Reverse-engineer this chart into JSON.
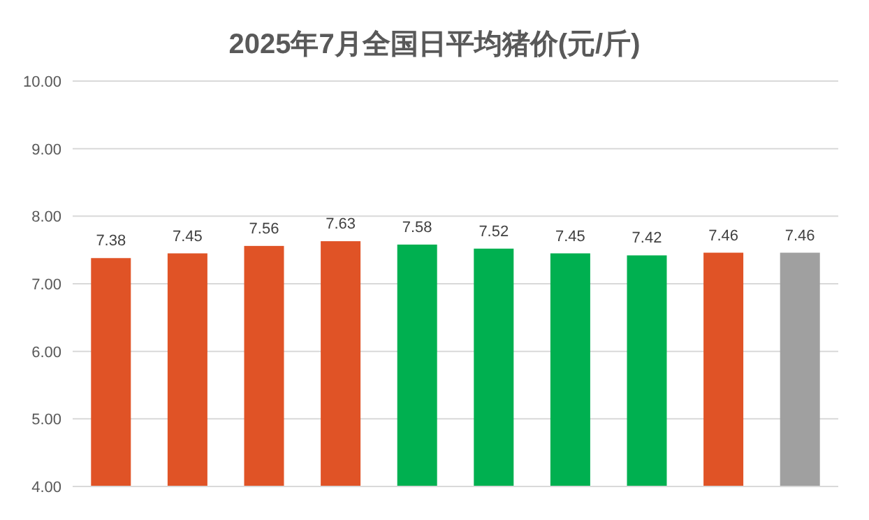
{
  "chart_data": {
    "type": "bar",
    "title": "2025年7月全国日平均猪价(元/斤)",
    "categories": [
      null,
      null,
      null,
      null,
      null,
      null,
      null,
      null,
      null,
      null
    ],
    "values": [
      7.38,
      7.45,
      7.56,
      7.63,
      7.58,
      7.52,
      7.45,
      7.42,
      7.46,
      7.46
    ],
    "colors": [
      "#e05326",
      "#e05326",
      "#e05326",
      "#e05326",
      "#00b050",
      "#00b050",
      "#00b050",
      "#00b050",
      "#e05326",
      "#a0a0a0"
    ],
    "ylim": [
      4,
      10
    ],
    "yticks": [
      {
        "value": 4,
        "label": "4.00"
      },
      {
        "value": 5,
        "label": "5.00"
      },
      {
        "value": 6,
        "label": "6.00"
      },
      {
        "value": 7,
        "label": "7.00"
      },
      {
        "value": 8,
        "label": "8.00"
      },
      {
        "value": 9,
        "label": "9.00"
      },
      {
        "value": 10,
        "label": "10.00"
      }
    ],
    "grid": "y",
    "data_labels": true
  }
}
